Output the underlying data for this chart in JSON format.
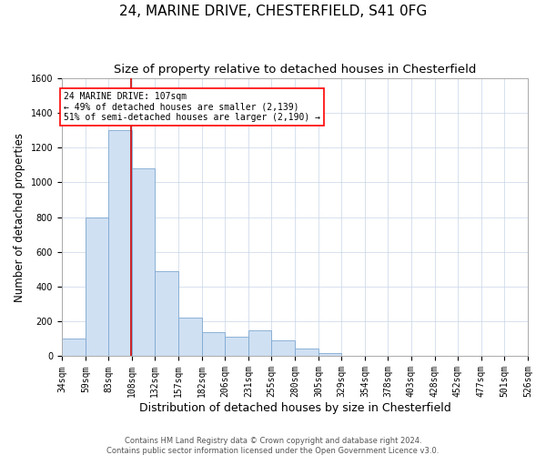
{
  "title": "24, MARINE DRIVE, CHESTERFIELD, S41 0FG",
  "subtitle": "Size of property relative to detached houses in Chesterfield",
  "xlabel": "Distribution of detached houses by size in Chesterfield",
  "ylabel": "Number of detached properties",
  "footer_line1": "Contains HM Land Registry data © Crown copyright and database right 2024.",
  "footer_line2": "Contains public sector information licensed under the Open Government Licence v3.0.",
  "bar_values": [
    100,
    800,
    1300,
    1080,
    490,
    220,
    140,
    110,
    150,
    90,
    45,
    20,
    5,
    5,
    5,
    5,
    2,
    2,
    2,
    2
  ],
  "bin_edges": [
    34,
    59,
    83,
    108,
    132,
    157,
    182,
    206,
    231,
    255,
    280,
    305,
    329,
    354,
    378,
    403,
    428,
    452,
    477,
    501,
    526
  ],
  "bin_labels": [
    "34sqm",
    "59sqm",
    "83sqm",
    "108sqm",
    "132sqm",
    "157sqm",
    "182sqm",
    "206sqm",
    "231sqm",
    "255sqm",
    "280sqm",
    "305sqm",
    "329sqm",
    "354sqm",
    "378sqm",
    "403sqm",
    "428sqm",
    "452sqm",
    "477sqm",
    "501sqm",
    "526sqm"
  ],
  "bar_color": "#cfe0f3",
  "bar_edge_color": "#7fa8d0",
  "property_line_x": 107,
  "annotation_line1": "24 MARINE DRIVE: 107sqm",
  "annotation_line2": "← 49% of detached houses are smaller (2,139)",
  "annotation_line3": "51% of semi-detached houses are larger (2,190) →",
  "vline_color": "#cc0000",
  "ylim": [
    0,
    1600
  ],
  "yticks": [
    0,
    200,
    400,
    600,
    800,
    1000,
    1200,
    1400,
    1600
  ],
  "grid_color": "#c8d4e8",
  "bg_color": "#ffffff",
  "title_fontsize": 11,
  "subtitle_fontsize": 9.5,
  "tick_fontsize": 7,
  "ylabel_fontsize": 8.5,
  "xlabel_fontsize": 9,
  "footer_fontsize": 6
}
